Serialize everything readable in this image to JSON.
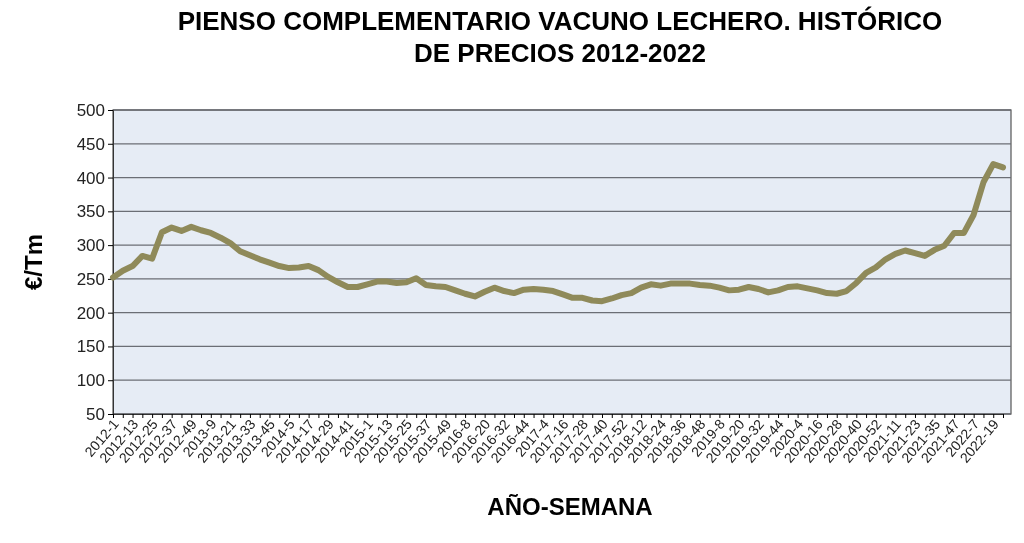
{
  "chart_data": {
    "type": "line",
    "title": "PIENSO COMPLEMENTARIO VACUNO LECHERO. HISTÓRICO DE PRECIOS 2012-2022",
    "xlabel": "AÑO-SEMANA",
    "ylabel": "€/Tm",
    "categories": [
      "2012-1",
      null,
      "2012-13",
      null,
      "2012-25",
      null,
      "2012-37",
      null,
      "2012-49",
      null,
      "2013-9",
      null,
      "2013-21",
      null,
      "2013-33",
      null,
      "2013-45",
      null,
      "2014-5",
      null,
      "2014-17",
      null,
      "2014-29",
      null,
      "2014-41",
      null,
      "2015-1",
      null,
      "2015-13",
      null,
      "2015-25",
      null,
      "2015-37",
      null,
      "2015-49",
      null,
      "2016-8",
      null,
      "2016-20",
      null,
      "2016-32",
      null,
      "2016-44",
      null,
      "2017-4",
      null,
      "2017-16",
      null,
      "2017-28",
      null,
      "2017-40",
      null,
      "2017-52",
      null,
      "2018-12",
      null,
      "2018-24",
      null,
      "2018-36",
      null,
      "2018-48",
      null,
      "2019-8",
      null,
      "2019-20",
      null,
      "2019-32",
      null,
      "2019-44",
      null,
      "2020-4",
      null,
      "2020-16",
      null,
      "2020-28",
      null,
      "2020-40",
      null,
      "2020-52",
      null,
      "2021-11",
      null,
      "2021-23",
      null,
      "2021-35",
      null,
      "2021-47",
      null,
      "2022-7",
      null,
      "2022-19",
      null
    ],
    "series": [
      {
        "color": "#8f8a5a",
        "values": [
          252,
          262,
          269,
          284,
          280,
          319,
          326,
          321,
          327,
          322,
          318,
          311,
          303,
          291,
          285,
          279,
          274,
          269,
          266,
          267,
          269,
          263,
          253,
          245,
          238,
          238,
          242,
          246,
          246,
          244,
          245,
          251,
          241,
          239,
          238,
          233,
          228,
          224,
          231,
          237,
          232,
          229,
          234,
          235,
          234,
          232,
          227,
          222,
          222,
          218,
          217,
          221,
          226,
          229,
          237,
          242,
          240,
          243,
          243,
          243,
          241,
          240,
          237,
          233,
          234,
          238,
          235,
          230,
          233,
          238,
          239,
          236,
          233,
          229,
          228,
          232,
          244,
          259,
          267,
          279,
          287,
          292,
          288,
          284,
          293,
          299,
          318,
          318,
          345,
          393,
          420,
          415
        ]
      }
    ],
    "ylim": [
      50,
      500
    ],
    "yticks": [
      50,
      100,
      150,
      200,
      250,
      300,
      350,
      400,
      450,
      500
    ],
    "grid": "y",
    "marker": "none",
    "line_style": "solid"
  }
}
